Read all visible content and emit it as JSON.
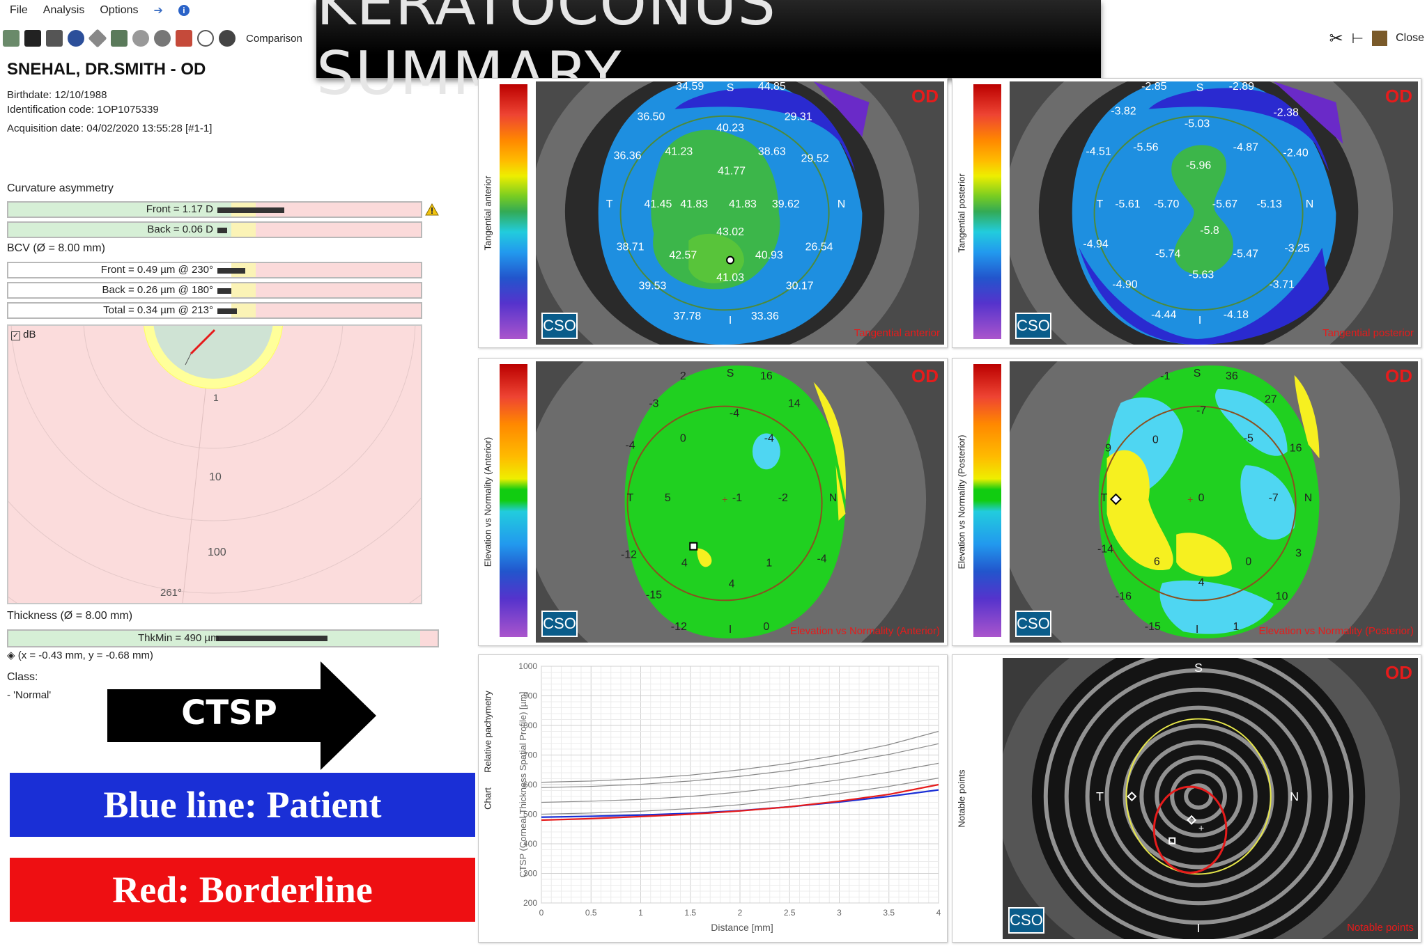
{
  "menu": {
    "items": [
      "File",
      "Analysis",
      "Options"
    ]
  },
  "toolbar": {
    "comparison_label": "Comparison"
  },
  "right_tools": {
    "close_label": "Close"
  },
  "title_banner": "KERATOCONUS SUMMARY",
  "patient": {
    "name": "SNEHAL, DR.SMITH - OD",
    "birthdate": "Birthdate: 12/10/1988",
    "id_code": "Identification code: 1OP1075339",
    "acquisition": "Acquisition date: 04/02/2020 13:55:28 [#1-1]"
  },
  "curvature_asymmetry": {
    "label": "Curvature asymmetry",
    "front": "Front = 1.17 D",
    "back": "Back = 0.06 D"
  },
  "bcv": {
    "label": "BCV (Ø = 8.00 mm)",
    "front": "Front = 0.49 µm @ 230°",
    "back": "Back = 0.26 µm @ 180°",
    "total": "Total = 0.34 µm @ 213°"
  },
  "polar": {
    "db_label": "dB",
    "ring_labels": [
      "1",
      "10",
      "100"
    ],
    "angle_label": "261°"
  },
  "thickness": {
    "label": "Thickness (Ø = 8.00 mm)",
    "thkmin": "ThkMin = 490 µm",
    "coords": "(x = -0.43 mm, y = -0.68 mm)"
  },
  "class": {
    "label": "Class:",
    "value": "- 'Normal'"
  },
  "ctsp": {
    "arrow_label": "CTSP"
  },
  "legend": {
    "blue": "Blue line: Patient",
    "red": "Red: Borderline"
  },
  "maps": {
    "tangential_anterior": {
      "side_label": "Tangential anterior",
      "od": "OD",
      "title": "Tangential anterior",
      "cso": "CSO",
      "values": [
        "34.59",
        "44.85",
        "36.50",
        "40.23",
        "29.31",
        "36.36",
        "41.23",
        "38.63",
        "29.52",
        "41.77",
        "41.45",
        "41.83",
        "41.83",
        "39.62",
        "43.02",
        "38.71",
        "42.57",
        "40.93",
        "26.54",
        "41.03",
        "39.53",
        "30.17",
        "37.78",
        "33.36"
      ],
      "axis": {
        "T": "T",
        "N": "N",
        "S": "S",
        "I": "I"
      }
    },
    "tangential_posterior": {
      "side_label": "Tangential posterior",
      "od": "OD",
      "title": "Tangential posterior",
      "cso": "CSO",
      "values": [
        "-2.85",
        "-2.89",
        "-3.82",
        "-5.03",
        "-2.38",
        "-4.51",
        "-5.56",
        "-4.87",
        "-2.40",
        "-5.96",
        "-5.61",
        "-5.70",
        "-5.67",
        "-5.13",
        "-5.8",
        "-4.94",
        "-5.74",
        "-5.47",
        "-3.25",
        "-5.63",
        "-4.90",
        "-3.71",
        "-4.44",
        "-4.18"
      ],
      "axis": {
        "T": "T",
        "N": "N",
        "S": "S",
        "I": "I"
      }
    },
    "elevation_anterior": {
      "side_label": "Elevation vs Normality (Anterior)",
      "od": "OD",
      "title": "Elevation vs Normality (Anterior)",
      "cso": "CSO",
      "values": [
        "2",
        "16",
        "-3",
        "14",
        "-4",
        "-4",
        "0",
        "-4",
        "5",
        "-1",
        "-2",
        "-12",
        "4",
        "1",
        "4",
        "-4",
        "-15",
        "-12",
        "0"
      ],
      "axis": {
        "T": "T",
        "N": "N",
        "S": "S",
        "I": "I"
      }
    },
    "elevation_posterior": {
      "side_label": "Elevation vs Normality (Posterior)",
      "od": "OD",
      "title": "Elevation vs Normality (Posterior)",
      "cso": "CSO",
      "values": [
        "-1",
        "36",
        "27",
        "-7",
        "9",
        "0",
        "-5",
        "16",
        "0",
        "-7",
        "-14",
        "6",
        "0",
        "3",
        "4",
        "-16",
        "10",
        "-15",
        "1"
      ],
      "axis": {
        "T": "T",
        "N": "N",
        "S": "S",
        "I": "I"
      }
    },
    "notable_points": {
      "side_label": "Notable points",
      "od": "OD",
      "title": "Notable points",
      "cso": "CSO",
      "axis": {
        "T": "T",
        "N": "N",
        "S": "S",
        "I": "I"
      }
    }
  },
  "chart_data": {
    "type": "line",
    "side_label": "Chart",
    "subtitle": "Relative pachymetry",
    "title": "",
    "xlabel": "Distance [mm]",
    "ylabel": "CTSP (Corneal Thickness Spatial Profile) [µm]",
    "xlim": [
      0,
      4
    ],
    "ylim": [
      200,
      1000
    ],
    "x": [
      0,
      0.5,
      1,
      1.5,
      2,
      2.5,
      3,
      3.5,
      4
    ],
    "x_ticks": [
      "0",
      "0.5",
      "1",
      "1.5",
      "2",
      "2.5",
      "3",
      "3.5",
      "4"
    ],
    "y_ticks": [
      "200",
      "300",
      "400",
      "500",
      "600",
      "700",
      "800",
      "900",
      "1000"
    ],
    "series": [
      {
        "color": "#1a2fd6",
        "values": [
          490,
          493,
          497,
          503,
          512,
          525,
          541,
          560,
          582
        ]
      },
      {
        "color": "#e61b1b",
        "values": [
          480,
          485,
          492,
          500,
          511,
          525,
          544,
          567,
          600
        ]
      },
      {
        "color": "#8a8a8a",
        "values": [
          608,
          612,
          620,
          632,
          650,
          672,
          700,
          735,
          780
        ]
      },
      {
        "color": "#8a8a8a",
        "values": [
          590,
          594,
          601,
          612,
          628,
          648,
          673,
          702,
          738
        ]
      },
      {
        "color": "#8a8a8a",
        "values": [
          540,
          544,
          550,
          560,
          575,
          594,
          616,
          642,
          672
        ]
      },
      {
        "color": "#8a8a8a",
        "values": [
          500,
          504,
          510,
          519,
          532,
          549,
          570,
          594,
          622
        ]
      }
    ]
  }
}
